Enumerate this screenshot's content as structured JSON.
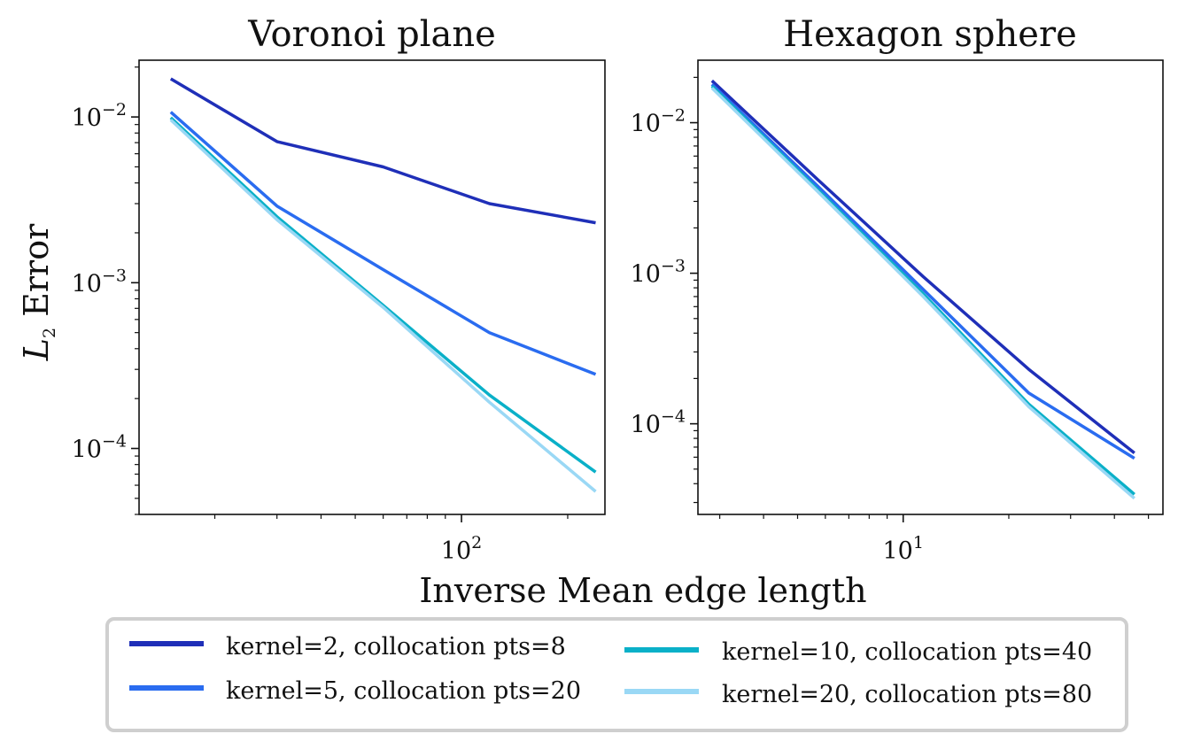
{
  "figure": {
    "xlabel": "Inverse Mean edge length",
    "ylabel_main": "L",
    "ylabel_sub": "2",
    "ylabel_rest": " Error"
  },
  "legend": {
    "placement": "bottom-center",
    "entries": [
      {
        "label": "kernel=2, collocation pts=8",
        "color": "#1f2fb8"
      },
      {
        "label": "kernel=10, collocation pts=40",
        "color": "#0ab0c8"
      },
      {
        "label": "kernel=5, collocation pts=20",
        "color": "#2a6cf0"
      },
      {
        "label": "kernel=20, collocation pts=80",
        "color": "#9ad8f5"
      }
    ]
  },
  "chart_data": [
    {
      "type": "line",
      "title": "Voronoi plane",
      "xscale": "log",
      "yscale": "log",
      "xlim": [
        12.2,
        255
      ],
      "ylim": [
        4e-05,
        0.022
      ],
      "x_ticks": [
        {
          "base": "10",
          "exp": "2"
        }
      ],
      "y_ticks": [
        {
          "base": "10",
          "exp": "−2",
          "value": 0.01
        },
        {
          "base": "10",
          "exp": "−3",
          "value": 0.001
        },
        {
          "base": "10",
          "exp": "−4",
          "value": 0.0001
        }
      ],
      "x": [
        15,
        30,
        60,
        120,
        240
      ],
      "series": [
        {
          "name": "kernel=2, collocation pts=8",
          "color": "#1f2fb8",
          "values": [
            0.017,
            0.0071,
            0.005,
            0.003,
            0.0023
          ]
        },
        {
          "name": "kernel=5, collocation pts=20",
          "color": "#2a6cf0",
          "values": [
            0.0107,
            0.0029,
            0.0012,
            0.0005,
            0.00028
          ]
        },
        {
          "name": "kernel=10, collocation pts=40",
          "color": "#0ab0c8",
          "values": [
            0.0099,
            0.0025,
            0.00073,
            0.00021,
            7.2e-05
          ]
        },
        {
          "name": "kernel=20, collocation pts=80",
          "color": "#9ad8f5",
          "values": [
            0.0096,
            0.0024,
            0.00071,
            0.00019,
            5.5e-05
          ]
        }
      ]
    },
    {
      "type": "line",
      "title": "Hexagon sphere",
      "xscale": "log",
      "yscale": "log",
      "xlim": [
        2.6,
        55
      ],
      "ylim": [
        2.5e-05,
        0.026
      ],
      "x_ticks": [
        {
          "base": "10",
          "exp": "1"
        }
      ],
      "y_ticks": [
        {
          "base": "10",
          "exp": "−2",
          "value": 0.01
        },
        {
          "base": "10",
          "exp": "−3",
          "value": 0.001
        },
        {
          "base": "10",
          "exp": "−4",
          "value": 0.0001
        }
      ],
      "x": [
        2.85,
        5.7,
        11.4,
        22.8,
        45.6
      ],
      "series": [
        {
          "name": "kernel=2, collocation pts=8",
          "color": "#1f2fb8",
          "values": [
            0.019,
            0.0042,
            0.00095,
            0.00023,
            6.4e-05
          ]
        },
        {
          "name": "kernel=5, collocation pts=20",
          "color": "#2a6cf0",
          "values": [
            0.018,
            0.0038,
            0.00078,
            0.00016,
            5.9e-05
          ]
        },
        {
          "name": "kernel=10, collocation pts=40",
          "color": "#0ab0c8",
          "values": [
            0.0175,
            0.0036,
            0.00073,
            0.000135,
            3.4e-05
          ]
        },
        {
          "name": "kernel=20, collocation pts=80",
          "color": "#9ad8f5",
          "values": [
            0.017,
            0.0035,
            0.0007,
            0.00013,
            3.2e-05
          ]
        }
      ]
    }
  ]
}
